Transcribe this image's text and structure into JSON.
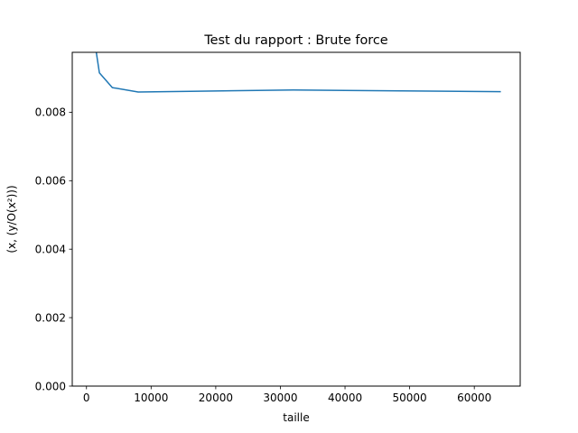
{
  "chart_data": {
    "type": "line",
    "title": "Test du rapport : Brute force",
    "xlabel": "taille",
    "ylabel": "(x, (y/O(x²)))",
    "xlim": [
      -2200,
      67100
    ],
    "ylim": [
      0,
      0.00975
    ],
    "xticks": [
      0,
      10000,
      20000,
      30000,
      40000,
      50000,
      60000
    ],
    "xtick_labels": [
      "0",
      "10000",
      "20000",
      "30000",
      "40000",
      "50000",
      "60000"
    ],
    "yticks": [
      0,
      0.002,
      0.004,
      0.006,
      0.008
    ],
    "ytick_labels": [
      "0.000",
      "0.002",
      "0.004",
      "0.006",
      "0.008"
    ],
    "grid": false,
    "series": [
      {
        "color": "#1f77b4",
        "x": [
          1000,
          2000,
          4000,
          8000,
          16000,
          32000,
          64000
        ],
        "y": [
          0.0104,
          0.00915,
          0.00872,
          0.00859,
          0.00861,
          0.00865,
          0.0086
        ]
      }
    ]
  }
}
